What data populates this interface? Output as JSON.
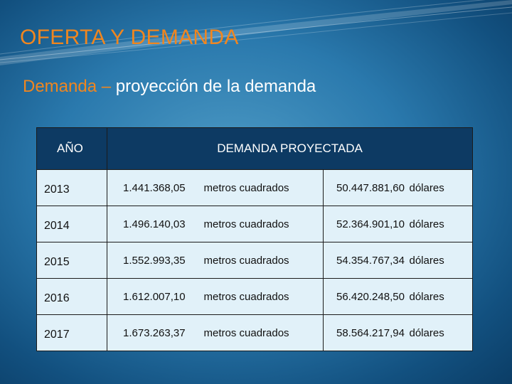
{
  "slide": {
    "title": "OFERTA Y DEMANDA",
    "subtitle_accent": "Demanda –",
    "subtitle_rest": " proyección de la demanda"
  },
  "colors": {
    "accent_orange": "#f0861f",
    "header_navy": "#0d3a63",
    "cell_bg": "#e1f1f9"
  },
  "table": {
    "headers": {
      "year": "AÑO",
      "demand": "DEMANDA PROYECTADA"
    },
    "rows": [
      {
        "year": "2013",
        "area": "1.441.368,05",
        "area_unit": "metros cuadrados",
        "amount": "50.447.881,60",
        "amount_unit": "dólares"
      },
      {
        "year": "2014",
        "area": "1.496.140,03",
        "area_unit": "metros cuadrados",
        "amount": "52.364.901,10",
        "amount_unit": "dólares"
      },
      {
        "year": "2015",
        "area": "1.552.993,35",
        "area_unit": "metros cuadrados",
        "amount": "54.354.767,34",
        "amount_unit": "dólares"
      },
      {
        "year": "2016",
        "area": "1.612.007,10",
        "area_unit": "metros cuadrados",
        "amount": "56.420.248,50",
        "amount_unit": "dólares"
      },
      {
        "year": "2017",
        "area": "1.673.263,37",
        "area_unit": "metros cuadrados",
        "amount": "58.564.217,94",
        "amount_unit": "dólares"
      }
    ]
  }
}
